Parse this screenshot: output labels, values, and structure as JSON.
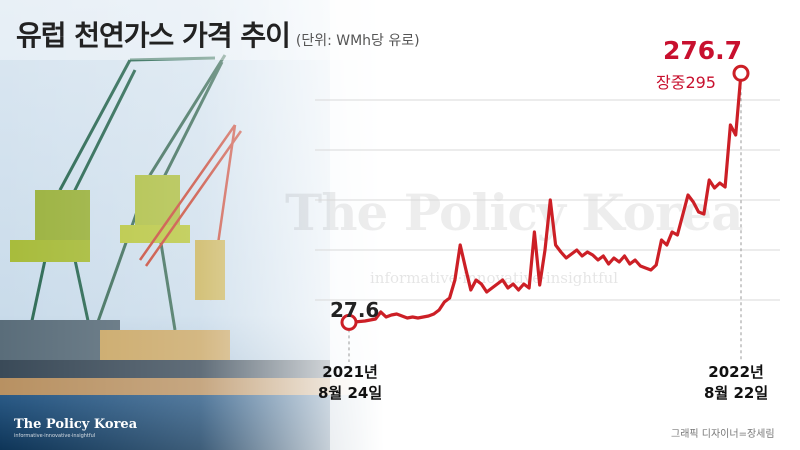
{
  "header": {
    "title": "유럽 천연가스 가격 추이",
    "unit": "(단위: WMh당 유로)"
  },
  "watermark": {
    "main": "The Policy Korea",
    "sub": "informative·innovative·insightful"
  },
  "labels": {
    "start_value": "27.6",
    "end_value": "276.7",
    "end_note": "장중295",
    "start_date_line1": "2021년",
    "start_date_line2": "8월 24일",
    "end_date_line1": "2022년",
    "end_date_line2": "8월 22일"
  },
  "footer": {
    "logo": "The Policy Korea",
    "logo_sub": "informative·innovative·insightful",
    "credit": "그래픽 디자이너=장세림"
  },
  "colors": {
    "line": "#cc1f26",
    "accent": "#c8102e",
    "grid": "#d9d9d9"
  },
  "chart_data": {
    "type": "line",
    "title": "유럽 천연가스 가격 추이",
    "unit": "WMh당 유로",
    "x_start": "2021년 8월 24일",
    "x_end": "2022년 8월 22일",
    "ylim": [
      0,
      300
    ],
    "grid": true,
    "legend": "none",
    "series": [
      {
        "values": [
          27.6,
          28,
          28.5,
          29,
          30,
          31,
          38,
          33,
          35,
          36,
          34,
          32,
          33,
          32,
          33,
          34,
          36,
          40,
          48,
          52,
          70,
          105,
          82,
          60,
          70,
          66,
          58,
          62,
          66,
          70,
          62,
          66,
          60,
          66,
          62,
          118,
          65,
          100,
          150,
          105,
          98,
          92,
          96,
          100,
          94,
          98,
          95,
          90,
          94,
          86,
          92,
          88,
          94,
          86,
          90,
          84,
          82,
          80,
          85,
          110,
          105,
          118,
          115,
          135,
          155,
          148,
          138,
          136,
          170,
          162,
          167,
          163,
          225,
          215,
          276.7
        ]
      }
    ]
  }
}
